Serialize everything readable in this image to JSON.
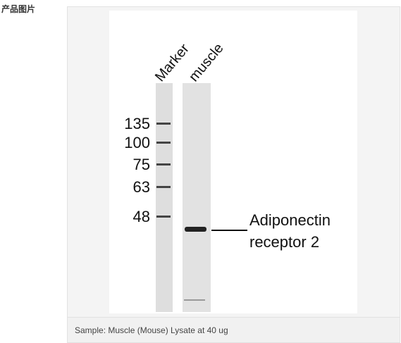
{
  "section_label": "产品图片",
  "blot": {
    "lanes": [
      "Marker",
      "muscle"
    ],
    "markers": [
      135,
      100,
      75,
      63,
      48
    ],
    "band_label": [
      "Adiponectin",
      "receptor 2"
    ]
  },
  "caption": "Sample: Muscle (Mouse) Lysate at 40 ug"
}
